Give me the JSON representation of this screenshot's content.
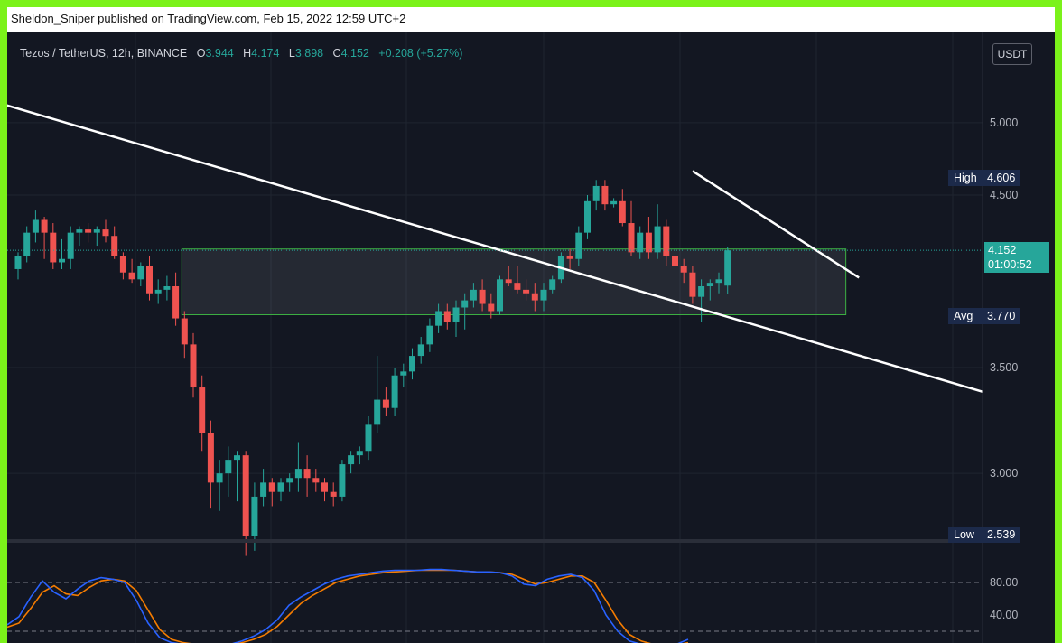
{
  "header": {
    "publisher": "Sheldon_Sniper published on TradingView.com, Feb 15, 2022 12:59 UTC+2"
  },
  "legend": {
    "symbol": "Tezos / TetherUS, 12h, BINANCE",
    "o_label": "O",
    "o": "3.944",
    "h_label": "H",
    "h": "4.174",
    "l_label": "L",
    "l": "3.898",
    "c_label": "C",
    "c": "4.152",
    "change": "+0.208 (+5.27%)"
  },
  "currency": "USDT",
  "price_axis": {
    "ticks": [
      "5.000",
      "4.500",
      "3.500",
      "3.000"
    ]
  },
  "markers": {
    "high_label": "High",
    "high_value": "4.606",
    "last_value": "4.152",
    "countdown": "01:00:52",
    "avg_label": "Avg",
    "avg_value": "3.770",
    "low_label": "Low",
    "low_value": "2.539"
  },
  "oscillator_axis": {
    "ticks": [
      "80.00",
      "40.00"
    ]
  },
  "colors": {
    "up": "#26a69a",
    "down": "#ef5350",
    "bg": "#131722",
    "grid": "#1f2430",
    "k_line": "#2962ff",
    "d_line": "#f57c00"
  },
  "chart_data": {
    "type": "candlestick",
    "symbol": "Tezos / TetherUS",
    "interval": "12h",
    "exchange": "BINANCE",
    "price_scale": "log",
    "ohlc": [
      [
        4.04,
        4.14,
        3.98,
        4.12
      ],
      [
        4.12,
        4.3,
        4.08,
        4.26
      ],
      [
        4.26,
        4.4,
        4.2,
        4.34
      ],
      [
        4.34,
        4.36,
        4.1,
        4.26
      ],
      [
        4.26,
        4.32,
        4.04,
        4.08
      ],
      [
        4.08,
        4.22,
        4.04,
        4.1
      ],
      [
        4.1,
        4.3,
        4.04,
        4.26
      ],
      [
        4.26,
        4.3,
        4.18,
        4.28
      ],
      [
        4.28,
        4.32,
        4.2,
        4.26
      ],
      [
        4.26,
        4.3,
        4.18,
        4.28
      ],
      [
        4.28,
        4.34,
        4.2,
        4.24
      ],
      [
        4.24,
        4.3,
        4.1,
        4.12
      ],
      [
        4.12,
        4.14,
        3.98,
        4.02
      ],
      [
        4.02,
        4.1,
        3.96,
        3.98
      ],
      [
        3.98,
        4.08,
        3.94,
        4.06
      ],
      [
        4.06,
        4.12,
        3.86,
        3.9
      ],
      [
        3.9,
        3.98,
        3.84,
        3.92
      ],
      [
        3.92,
        4.0,
        3.86,
        3.94
      ],
      [
        3.94,
        4.02,
        3.72,
        3.76
      ],
      [
        3.76,
        3.8,
        3.55,
        3.62
      ],
      [
        3.62,
        3.68,
        3.35,
        3.4
      ],
      [
        3.4,
        3.46,
        3.1,
        3.18
      ],
      [
        3.18,
        3.24,
        2.85,
        2.96
      ],
      [
        2.96,
        3.06,
        2.84,
        3.0
      ],
      [
        3.0,
        3.12,
        2.9,
        3.06
      ],
      [
        3.06,
        3.1,
        2.88,
        3.08
      ],
      [
        3.08,
        3.1,
        2.66,
        2.74
      ],
      [
        2.74,
        2.96,
        2.68,
        2.9
      ],
      [
        2.9,
        3.02,
        2.86,
        2.96
      ],
      [
        2.96,
        2.98,
        2.86,
        2.92
      ],
      [
        2.92,
        2.98,
        2.88,
        2.96
      ],
      [
        2.96,
        3.0,
        2.92,
        2.98
      ],
      [
        2.98,
        3.14,
        2.92,
        3.02
      ],
      [
        3.02,
        3.08,
        2.9,
        2.98
      ],
      [
        2.98,
        3.02,
        2.92,
        2.96
      ],
      [
        2.96,
        2.98,
        2.88,
        2.92
      ],
      [
        2.92,
        2.96,
        2.86,
        2.9
      ],
      [
        2.9,
        3.06,
        2.88,
        3.04
      ],
      [
        3.04,
        3.1,
        3.0,
        3.08
      ],
      [
        3.08,
        3.12,
        3.04,
        3.1
      ],
      [
        3.1,
        3.26,
        3.06,
        3.22
      ],
      [
        3.22,
        3.56,
        3.18,
        3.34
      ],
      [
        3.34,
        3.4,
        3.26,
        3.3
      ],
      [
        3.3,
        3.5,
        3.26,
        3.46
      ],
      [
        3.46,
        3.52,
        3.4,
        3.48
      ],
      [
        3.48,
        3.6,
        3.44,
        3.56
      ],
      [
        3.56,
        3.66,
        3.52,
        3.62
      ],
      [
        3.62,
        3.76,
        3.58,
        3.72
      ],
      [
        3.72,
        3.84,
        3.68,
        3.8
      ],
      [
        3.8,
        3.84,
        3.7,
        3.74
      ],
      [
        3.74,
        3.86,
        3.66,
        3.82
      ],
      [
        3.82,
        3.9,
        3.7,
        3.86
      ],
      [
        3.86,
        3.96,
        3.82,
        3.92
      ],
      [
        3.92,
        3.98,
        3.8,
        3.84
      ],
      [
        3.84,
        3.9,
        3.76,
        3.8
      ],
      [
        3.8,
        4.0,
        3.78,
        3.98
      ],
      [
        3.98,
        4.06,
        3.94,
        3.96
      ],
      [
        3.96,
        4.06,
        3.9,
        3.92
      ],
      [
        3.92,
        3.98,
        3.86,
        3.9
      ],
      [
        3.9,
        3.96,
        3.8,
        3.86
      ],
      [
        3.86,
        3.96,
        3.8,
        3.92
      ],
      [
        3.92,
        4.0,
        3.9,
        3.98
      ],
      [
        3.98,
        4.14,
        3.96,
        4.12
      ],
      [
        4.12,
        4.16,
        4.04,
        4.1
      ],
      [
        4.1,
        4.3,
        4.06,
        4.26
      ],
      [
        4.26,
        4.5,
        4.22,
        4.46
      ],
      [
        4.46,
        4.6,
        4.4,
        4.56
      ],
      [
        4.56,
        4.6,
        4.4,
        4.44
      ],
      [
        4.44,
        4.48,
        4.42,
        4.46
      ],
      [
        4.46,
        4.54,
        4.3,
        4.32
      ],
      [
        4.32,
        4.46,
        4.12,
        4.14
      ],
      [
        4.14,
        4.3,
        4.1,
        4.26
      ],
      [
        4.26,
        4.36,
        4.1,
        4.14
      ],
      [
        4.14,
        4.44,
        4.1,
        4.3
      ],
      [
        4.3,
        4.34,
        4.06,
        4.12
      ],
      [
        4.12,
        4.18,
        4.02,
        4.06
      ],
      [
        4.06,
        4.1,
        3.96,
        4.02
      ],
      [
        4.02,
        4.06,
        3.84,
        3.88
      ],
      [
        3.88,
        3.98,
        3.74,
        3.94
      ],
      [
        3.94,
        3.98,
        3.86,
        3.96
      ],
      [
        3.96,
        4.02,
        3.9,
        3.98
      ],
      [
        3.944,
        4.174,
        3.898,
        4.152
      ]
    ],
    "highlight_zone": {
      "top": 4.16,
      "bottom": 3.78
    },
    "trendlines": [
      {
        "from_bar": -5,
        "from_price": 5.2,
        "to_bar": 128,
        "to_price": 3.16
      },
      {
        "from_bar": 77,
        "from_price": 4.66,
        "to_bar": 96,
        "to_price": 3.99
      }
    ],
    "oscillator": {
      "levels": [
        80,
        20
      ],
      "k": [
        28,
        38,
        62,
        82,
        68,
        60,
        72,
        82,
        86,
        84,
        80,
        58,
        30,
        12,
        6,
        4,
        3,
        2,
        2,
        4,
        8,
        14,
        22,
        34,
        52,
        62,
        70,
        78,
        84,
        88,
        90,
        92,
        94,
        95,
        95,
        95,
        96,
        96,
        95,
        94,
        93,
        93,
        92,
        88,
        78,
        76,
        84,
        88,
        90,
        86,
        70,
        40,
        20,
        8,
        4,
        3,
        2,
        4,
        10
      ],
      "d": [
        25,
        30,
        48,
        68,
        76,
        66,
        64,
        74,
        82,
        84,
        82,
        70,
        46,
        22,
        10,
        6,
        4,
        3,
        2,
        3,
        6,
        10,
        16,
        26,
        40,
        54,
        64,
        72,
        80,
        84,
        88,
        90,
        92,
        93,
        94,
        95,
        95,
        95,
        95,
        94,
        93,
        93,
        92,
        90,
        84,
        78,
        80,
        84,
        88,
        88,
        80,
        58,
        34,
        16,
        8,
        4,
        3,
        3,
        6
      ]
    }
  }
}
